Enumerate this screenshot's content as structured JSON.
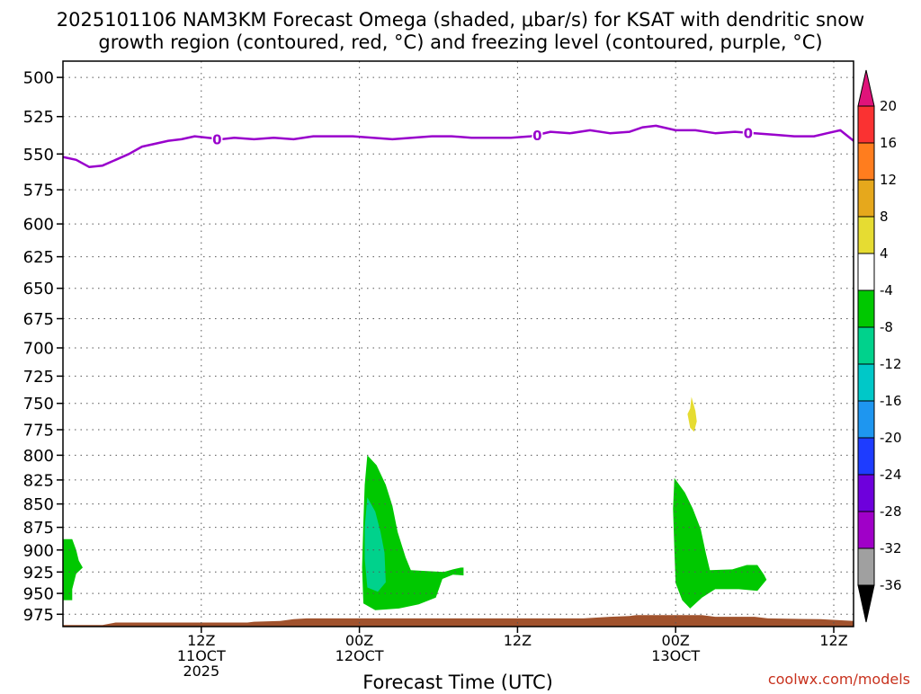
{
  "chart_data": {
    "type": "contour",
    "title_line1": "2025101106 NAM3KM Forecast Omega (shaded, μbar/s) for KSAT with dendritic snow",
    "title_line2": "growth region (contoured, red, °C) and freezing level (contoured, purple, °C)",
    "xlabel": "Forecast Time (UTC)",
    "credit": "coolwx.com/models",
    "x_hours_range": [
      -4.5,
      55.5
    ],
    "y_pressure_range": [
      990,
      490
    ],
    "y_ticks": [
      {
        "p": 500,
        "label": "500"
      },
      {
        "p": 525,
        "label": "525"
      },
      {
        "p": 550,
        "label": "550"
      },
      {
        "p": 575,
        "label": "575"
      },
      {
        "p": 600,
        "label": "600"
      },
      {
        "p": 625,
        "label": "625"
      },
      {
        "p": 650,
        "label": "650"
      },
      {
        "p": 675,
        "label": "675"
      },
      {
        "p": 700,
        "label": "700"
      },
      {
        "p": 725,
        "label": "725"
      },
      {
        "p": 750,
        "label": "750"
      },
      {
        "p": 775,
        "label": "775"
      },
      {
        "p": 800,
        "label": "800"
      },
      {
        "p": 825,
        "label": "825"
      },
      {
        "p": 850,
        "label": "850"
      },
      {
        "p": 875,
        "label": "875"
      },
      {
        "p": 900,
        "label": "900"
      },
      {
        "p": 925,
        "label": "925"
      },
      {
        "p": 950,
        "label": "950"
      },
      {
        "p": 975,
        "label": "975"
      }
    ],
    "x_ticks": [
      {
        "h": 6,
        "lines": [
          "12Z",
          "11OCT",
          "2025"
        ]
      },
      {
        "h": 18,
        "lines": [
          "00Z",
          "12OCT"
        ]
      },
      {
        "h": 30,
        "lines": [
          "12Z"
        ]
      },
      {
        "h": 42,
        "lines": [
          "00Z",
          "13OCT"
        ]
      },
      {
        "h": 54,
        "lines": [
          "12Z"
        ]
      }
    ],
    "colorbar": {
      "labels": [
        "20",
        "16",
        "12",
        "8",
        "4",
        "-4",
        "-8",
        "-12",
        "-16",
        "-20",
        "-24",
        "-28",
        "-32",
        "-36"
      ],
      "colors": [
        "#fa3232",
        "#ff7d1e",
        "#e6a81c",
        "#e6dc32",
        "#ffffff",
        "#00c800",
        "#00d28c",
        "#00c8c8",
        "#1e96f0",
        "#1e3cff",
        "#6e00dc",
        "#a000c8",
        "#a0a0a0"
      ],
      "top_color": "#e0137a",
      "bottom_color": "#000000"
    },
    "freezing_level_0C": {
      "color": "#9900cc",
      "label": "0",
      "label_hours": [
        7.2,
        31.5,
        47.5
      ],
      "hours": [
        -4.5,
        -3.5,
        -2.5,
        -1.5,
        -0.5,
        0.5,
        1.5,
        2.5,
        3.5,
        4.5,
        5.5,
        6.5,
        7.5,
        8.5,
        10,
        11.5,
        13,
        14.5,
        16,
        17.5,
        19,
        20.5,
        22,
        23.5,
        25,
        26.5,
        28,
        29.5,
        31,
        32.5,
        34,
        35.5,
        37,
        38.5,
        39.5,
        40.5,
        42,
        43.5,
        45,
        46.5,
        48,
        49.5,
        51,
        52.5,
        53.5,
        54.5,
        55.5
      ],
      "pressure": [
        552,
        554,
        559,
        558,
        554,
        550,
        545,
        543,
        541,
        540,
        538,
        539,
        540,
        539,
        540,
        539,
        540,
        538,
        538,
        538,
        539,
        540,
        539,
        538,
        538,
        539,
        539,
        539,
        538,
        535,
        536,
        534,
        536,
        535,
        532,
        531,
        534,
        534,
        536,
        535,
        536,
        537,
        538,
        538,
        536,
        534,
        541
      ]
    },
    "omega_regions": [
      {
        "level": -8,
        "color": "#00c800",
        "points": [
          [
            -4.5,
            888
          ],
          [
            -3.8,
            888
          ],
          [
            -3.5,
            900
          ],
          [
            -3.3,
            912
          ],
          [
            -3.0,
            920
          ],
          [
            -3.5,
            927
          ],
          [
            -3.8,
            945
          ],
          [
            -3.8,
            958
          ],
          [
            -4.5,
            958
          ]
        ]
      },
      {
        "level": -8,
        "color": "#00c800",
        "points": [
          [
            18.6,
            800
          ],
          [
            19.3,
            810
          ],
          [
            20.0,
            830
          ],
          [
            20.5,
            852
          ],
          [
            20.9,
            880
          ],
          [
            21.5,
            908
          ],
          [
            21.9,
            923
          ],
          [
            24.4,
            925
          ],
          [
            25.1,
            922
          ],
          [
            25.7,
            920
          ],
          [
            25.9,
            920
          ],
          [
            25.9,
            929
          ],
          [
            25.1,
            928
          ],
          [
            24.3,
            933
          ],
          [
            23.8,
            955
          ],
          [
            22.5,
            963
          ],
          [
            21.0,
            968
          ],
          [
            19.2,
            970
          ],
          [
            18.3,
            962
          ],
          [
            18.2,
            920
          ],
          [
            18.3,
            870
          ],
          [
            18.4,
            830
          ]
        ]
      },
      {
        "level": -12,
        "color": "#00d28c",
        "points": [
          [
            18.6,
            843
          ],
          [
            19.2,
            858
          ],
          [
            19.6,
            880
          ],
          [
            19.9,
            903
          ],
          [
            20.0,
            937
          ],
          [
            19.4,
            948
          ],
          [
            18.6,
            943
          ],
          [
            18.4,
            910
          ],
          [
            18.4,
            875
          ]
        ]
      },
      {
        "level": -8,
        "color": "#00c800",
        "points": [
          [
            41.9,
            823
          ],
          [
            42.7,
            838
          ],
          [
            43.3,
            855
          ],
          [
            43.9,
            877
          ],
          [
            44.3,
            904
          ],
          [
            44.6,
            923
          ],
          [
            46.3,
            922
          ],
          [
            47.4,
            917
          ],
          [
            48.2,
            917
          ],
          [
            48.7,
            928
          ],
          [
            48.9,
            934
          ],
          [
            48.2,
            947
          ],
          [
            46.8,
            945
          ],
          [
            45.0,
            945
          ],
          [
            44.0,
            955
          ],
          [
            43.1,
            968
          ],
          [
            42.5,
            958
          ],
          [
            42.0,
            938
          ],
          [
            41.9,
            900
          ],
          [
            41.8,
            855
          ]
        ]
      },
      {
        "level": 4,
        "color": "#e6dc32",
        "points": [
          [
            43.2,
            744
          ],
          [
            43.5,
            757
          ],
          [
            43.6,
            767
          ],
          [
            43.4,
            777
          ],
          [
            43.1,
            773
          ],
          [
            42.9,
            760
          ],
          [
            43.1,
            755
          ]
        ]
      }
    ],
    "terrain": {
      "color": "#a0522d",
      "hours": [
        -4.5,
        -1.5,
        -0.5,
        5,
        9.5,
        10,
        12,
        13,
        14,
        25,
        35,
        37,
        38.5,
        39,
        39.5,
        44,
        45,
        48,
        49,
        53,
        55.5
      ],
      "pressure": [
        988,
        988,
        985,
        985,
        985,
        984,
        983,
        981,
        980,
        980,
        980,
        978,
        977,
        976,
        976,
        976,
        978,
        978,
        980,
        981,
        983
      ]
    }
  }
}
